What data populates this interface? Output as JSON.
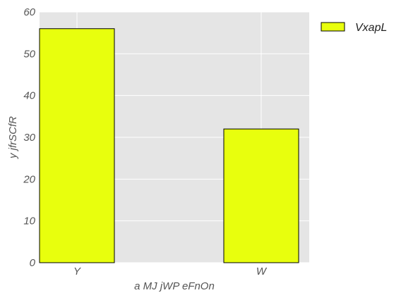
{
  "chart_data": {
    "type": "bar",
    "categories": [
      "Y",
      "W"
    ],
    "series": [
      {
        "name": "VxapL",
        "values": [
          56,
          32
        ],
        "color": "#e8ff0d"
      }
    ],
    "xlabel": "a MJ jWP eFnOn",
    "ylabel": "y jfrSCfR",
    "ylim": [
      0,
      60
    ],
    "yticks": [
      0,
      10,
      20,
      30,
      40,
      50,
      60
    ],
    "grid": true,
    "legend": "top-right-outside",
    "background": "#e5e5e5",
    "grid_color": "#ffffff",
    "bar_edge_color": "#000000"
  }
}
